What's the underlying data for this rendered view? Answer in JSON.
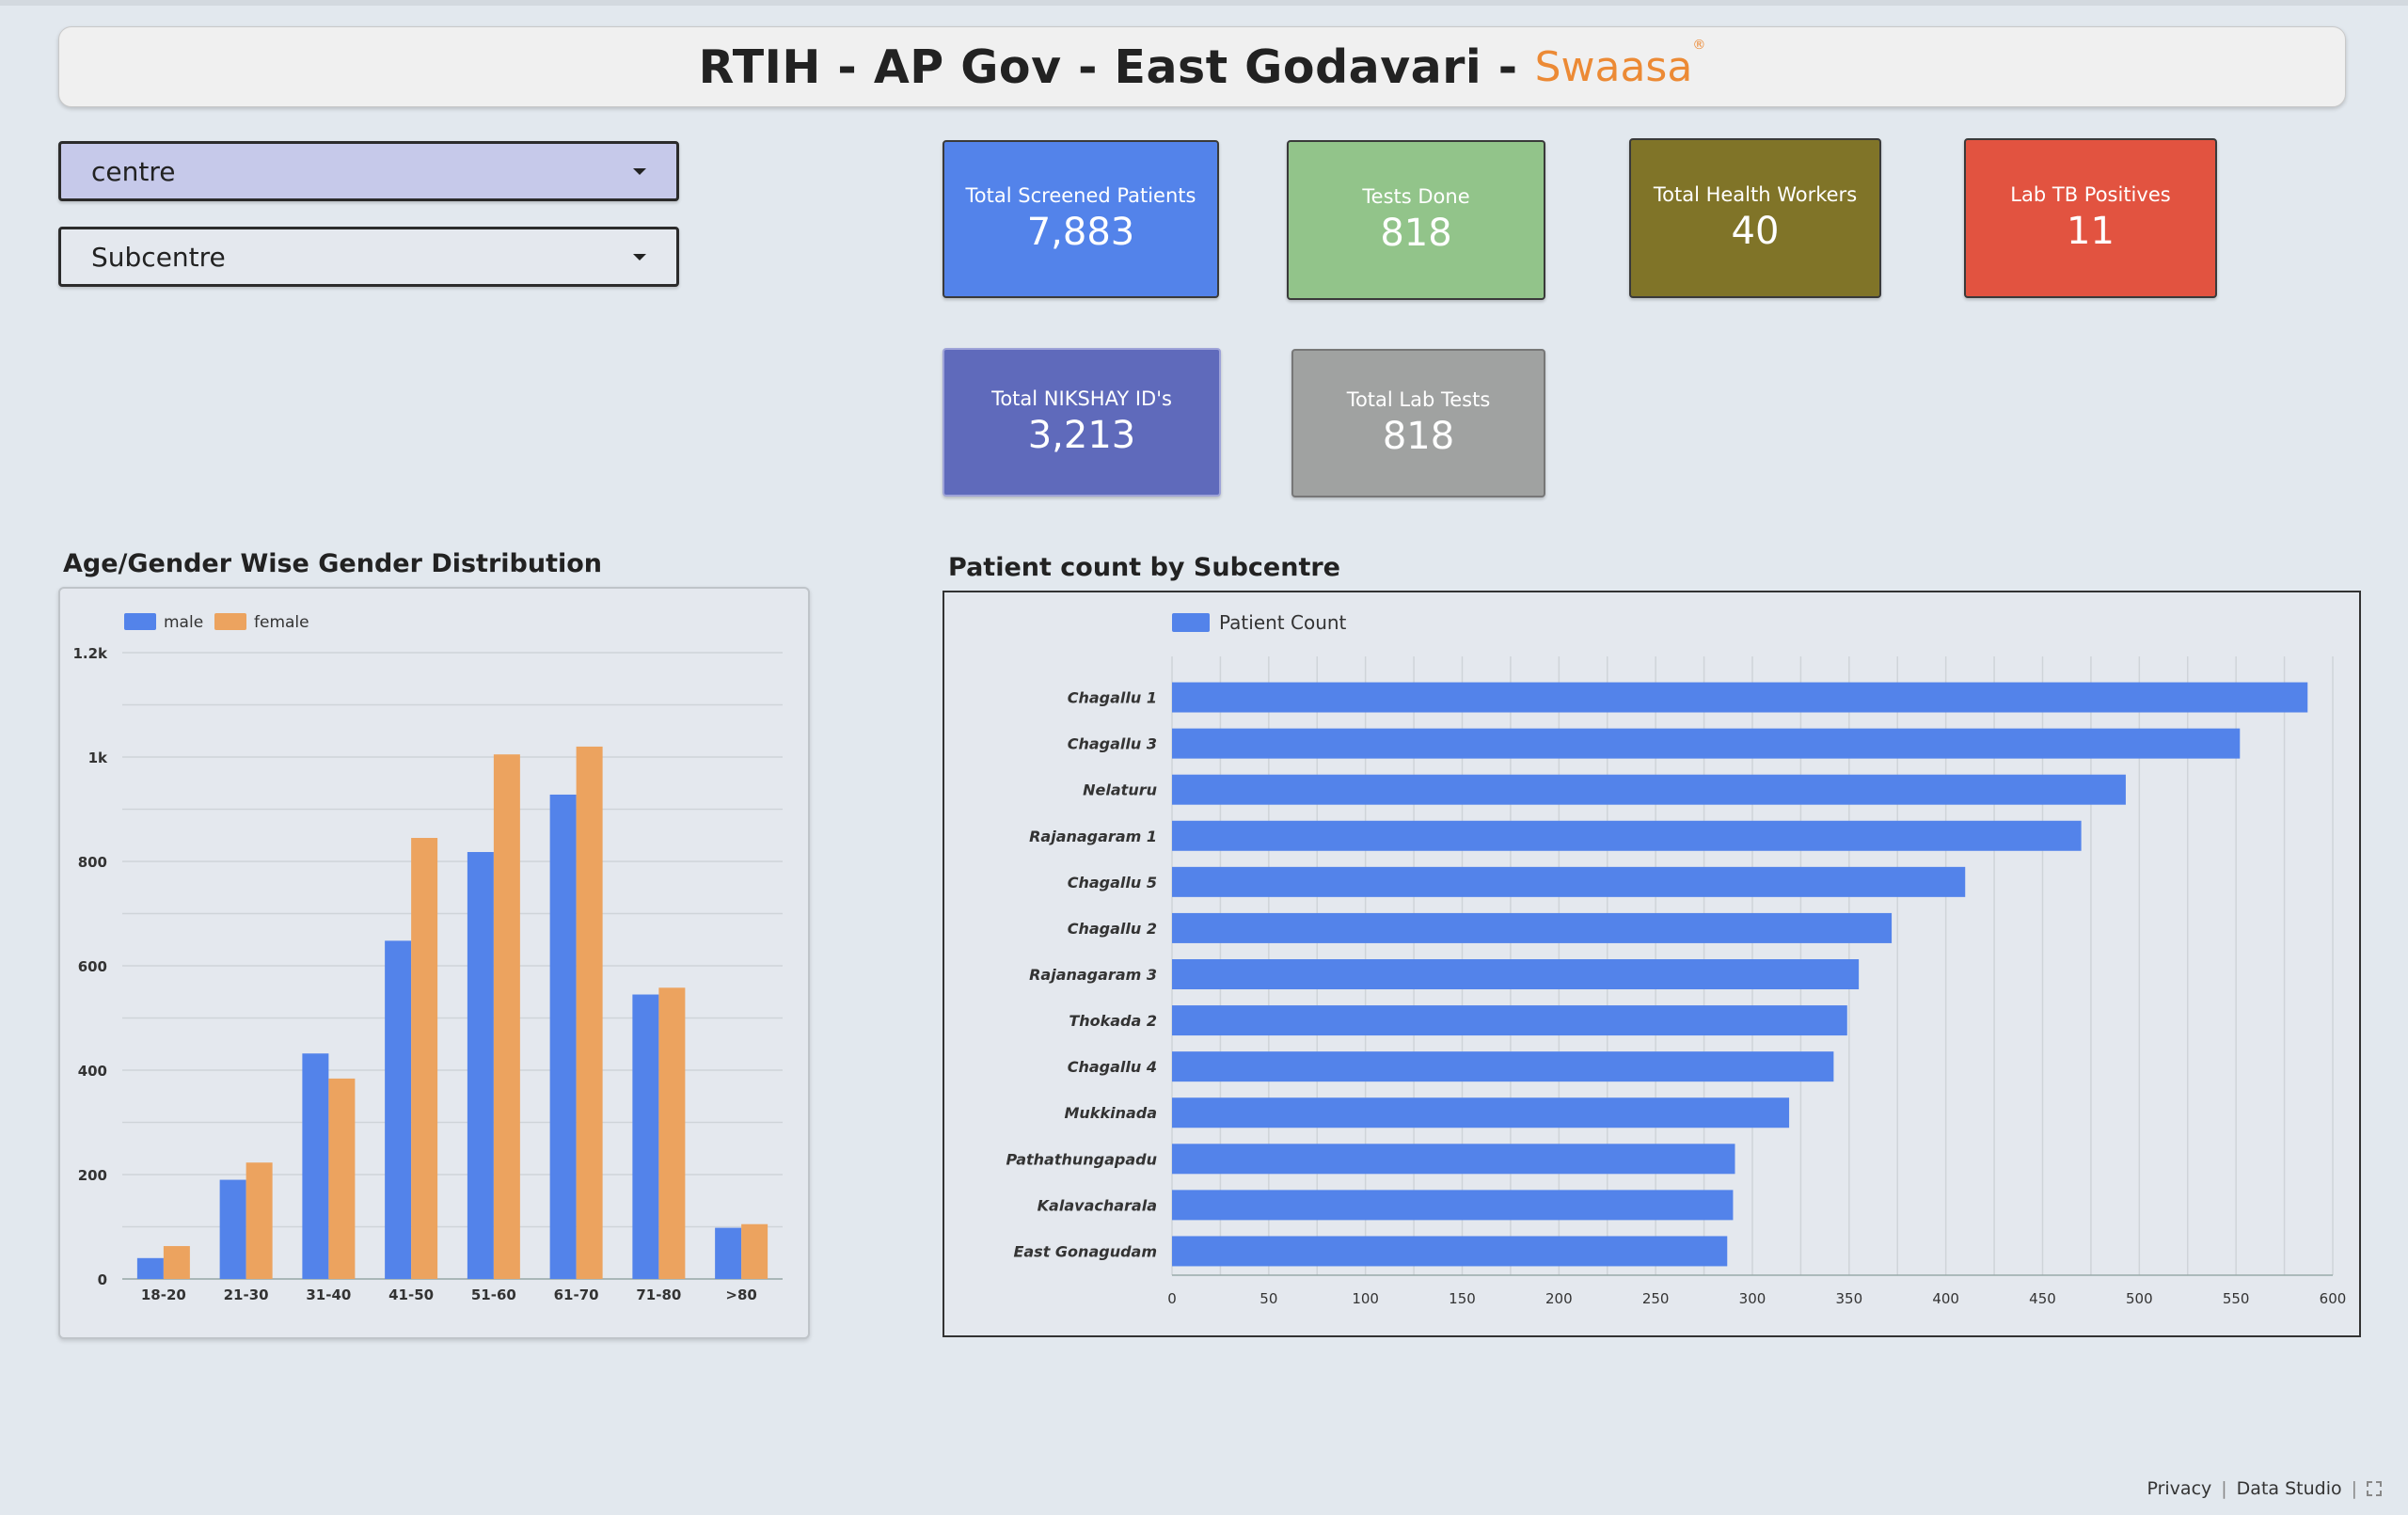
{
  "header": {
    "title": "RTIH - AP Gov - East Godavari -",
    "brand": "Swaasa",
    "brand_mark": "®"
  },
  "filters": {
    "centre_label": "centre",
    "subcentre_label": "Subcentre",
    "caret_icon": "caret-down-icon"
  },
  "kpis": {
    "screened": {
      "label": "Total Screened Patients",
      "value": "7,883",
      "color": "#5383ea"
    },
    "tests": {
      "label": "Tests Done",
      "value": "818",
      "color": "#92c48a"
    },
    "workers": {
      "label": "Total Health Workers",
      "value": "40",
      "color": "#807428"
    },
    "tb": {
      "label": "Lab TB Positives",
      "value": "11",
      "color": "#e25340"
    },
    "nikshay": {
      "label": "Total NIKSHAY ID's",
      "value": "3,213",
      "color": "#5f6abb"
    },
    "labtests": {
      "label": "Total Lab Tests",
      "value": "818",
      "color": "#a0a2a1"
    }
  },
  "age_chart": {
    "title": "Age/Gender Wise Gender Distribution",
    "legend": [
      "male",
      "female"
    ]
  },
  "sub_chart": {
    "title": "Patient count by Subcentre",
    "legend": [
      "Patient Count"
    ]
  },
  "footer": {
    "privacy": "Privacy",
    "studio": "Data Studio",
    "fullscreen_icon": "fullscreen-icon"
  },
  "chart_data": [
    {
      "type": "bar",
      "title": "Age/Gender Wise Gender Distribution",
      "categories": [
        "18-20",
        "21-30",
        "31-40",
        "41-50",
        "51-60",
        "61-70",
        "71-80",
        ">80"
      ],
      "series": [
        {
          "name": "male",
          "values": [
            40,
            190,
            432,
            648,
            818,
            928,
            545,
            98
          ],
          "color": "#5383ea"
        },
        {
          "name": "female",
          "values": [
            63,
            223,
            384,
            845,
            1005,
            1020,
            558,
            105
          ],
          "color": "#eca35f"
        }
      ],
      "yticks": [
        "0",
        "200",
        "400",
        "600",
        "800",
        "1k",
        "1.2k"
      ],
      "ylim": [
        0,
        1200
      ],
      "grid": true,
      "legend_position": "top-left"
    },
    {
      "type": "bar",
      "orientation": "horizontal",
      "title": "Patient count by Subcentre",
      "categories": [
        "Chagallu 1",
        "Chagallu 3",
        "Nelaturu",
        "Rajanagaram 1",
        "Chagallu 5",
        "Chagallu 2",
        "Rajanagaram 3",
        "Thokada 2",
        "Chagallu 4",
        "Mukkinada",
        "Pathathungapadu",
        "Kalavacharala",
        "East Gonagudam"
      ],
      "series": [
        {
          "name": "Patient Count",
          "values": [
            587,
            552,
            493,
            470,
            410,
            372,
            355,
            349,
            342,
            319,
            291,
            290,
            287
          ],
          "color": "#5383ea"
        }
      ],
      "xticks": [
        "0",
        "50",
        "100",
        "150",
        "200",
        "250",
        "300",
        "350",
        "400",
        "450",
        "500",
        "550",
        "600"
      ],
      "xlim": [
        0,
        600
      ],
      "grid": true,
      "legend_position": "top-left"
    }
  ]
}
